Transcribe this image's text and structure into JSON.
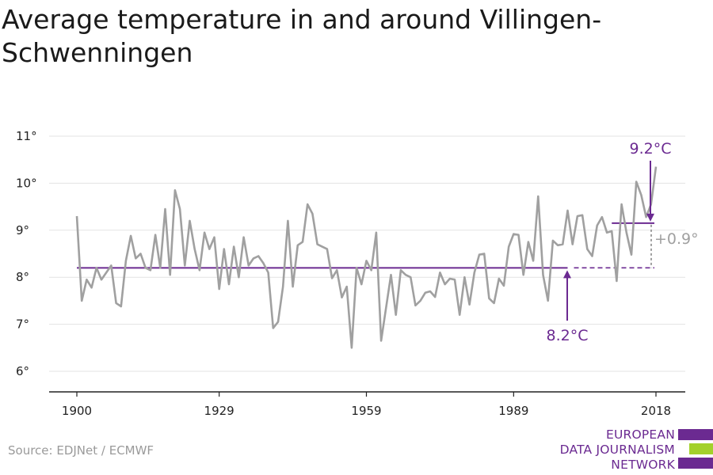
{
  "title": "Average temperature in and around Villingen-Schwenningen",
  "source": "Source: EDJNet / ECMWF",
  "logo": {
    "lines": [
      "EUROPEAN",
      "DATA JOURNALISM",
      "NETWORK"
    ],
    "colors": [
      "#6b2a91",
      "#a3d12b",
      "#6b2a91"
    ]
  },
  "colors": {
    "line": "#a0a0a0",
    "accent": "#6b2a91",
    "grid": "#e3e3e3",
    "axis": "#222222"
  },
  "chart_data": {
    "type": "line",
    "title": "Average temperature in and around Villingen-Schwenningen",
    "xlabel": "",
    "ylabel": "",
    "xlim": [
      1900,
      2018
    ],
    "ylim": [
      6,
      11
    ],
    "x_ticks": [
      1900,
      1929,
      1959,
      1989,
      2018
    ],
    "y_ticks": [
      6,
      7,
      8,
      9,
      10,
      11
    ],
    "y_tick_labels": [
      "6°",
      "7°",
      "8°",
      "9°",
      "10°",
      "11°"
    ],
    "grid": "horizontal",
    "series": [
      {
        "x_start": 1900,
        "x_step": 1,
        "values": [
          9.3,
          7.5,
          7.95,
          7.78,
          8.2,
          7.95,
          8.1,
          8.25,
          7.45,
          7.38,
          8.35,
          8.88,
          8.4,
          8.5,
          8.2,
          8.15,
          8.9,
          8.2,
          9.45,
          8.05,
          9.85,
          9.45,
          8.25,
          9.2,
          8.6,
          8.15,
          8.95,
          8.6,
          8.85,
          7.75,
          8.6,
          7.85,
          8.65,
          8.0,
          8.85,
          8.25,
          8.4,
          8.45,
          8.3,
          8.1,
          6.92,
          7.05,
          7.8,
          9.2,
          7.8,
          8.68,
          8.75,
          9.55,
          9.35,
          8.7,
          8.65,
          8.6,
          7.98,
          8.15,
          7.57,
          7.8,
          6.5,
          8.2,
          7.85,
          8.35,
          8.15,
          8.95,
          6.65,
          7.35,
          8.05,
          7.2,
          8.15,
          8.05,
          8.0,
          7.4,
          7.5,
          7.67,
          7.7,
          7.58,
          8.1,
          7.85,
          7.97,
          7.95,
          7.2,
          8.0,
          7.42,
          8.1,
          8.48,
          8.5,
          7.55,
          7.45,
          7.97,
          7.82,
          8.65,
          8.92,
          8.9,
          8.05,
          8.75,
          8.35,
          9.72,
          8.05,
          7.5,
          8.78,
          8.68,
          8.7,
          9.42,
          8.7,
          9.3,
          9.32,
          8.6,
          8.45,
          9.1,
          9.28,
          8.95,
          8.98,
          7.92,
          9.55,
          8.95,
          8.48,
          10.03,
          9.75,
          9.28,
          9.55,
          10.35
        ]
      }
    ],
    "reference_lines": [
      {
        "label": "8.2°C",
        "value": 8.2,
        "from": 1900,
        "to": 2018
      },
      {
        "label": "9.2°C",
        "value": 9.15,
        "from": 2009,
        "to": 2018
      }
    ],
    "annotations": [
      "9.2°C",
      "8.2°C",
      "+0.9°"
    ]
  }
}
